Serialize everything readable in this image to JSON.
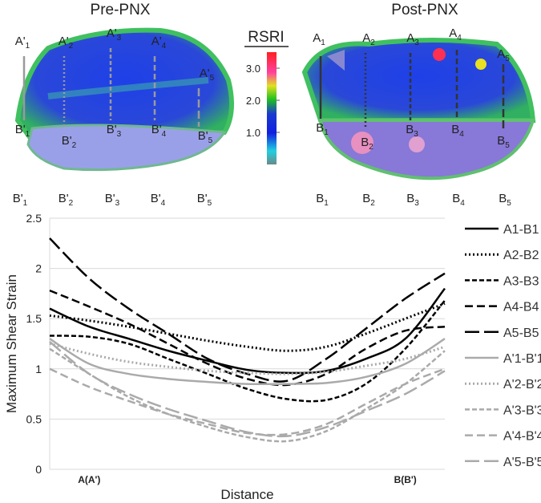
{
  "panels": [
    {
      "title": "Pre-PNX",
      "top_labels": [
        {
          "main": "A'",
          "sub": "1"
        },
        {
          "main": "A'",
          "sub": "2"
        },
        {
          "main": "A'",
          "sub": "3"
        },
        {
          "main": "A'",
          "sub": "4"
        },
        {
          "main": "A'",
          "sub": "5"
        }
      ],
      "bottom_labels": [
        {
          "main": "B'",
          "sub": "1"
        },
        {
          "main": "B'",
          "sub": "2"
        },
        {
          "main": "B'",
          "sub": "3"
        },
        {
          "main": "B'",
          "sub": "4"
        },
        {
          "main": "B'",
          "sub": "5"
        }
      ],
      "row_labels": [
        {
          "main": "B'",
          "sub": "1"
        },
        {
          "main": "B'",
          "sub": "2"
        },
        {
          "main": "B'",
          "sub": "3"
        },
        {
          "main": "B'",
          "sub": "4"
        },
        {
          "main": "B'",
          "sub": "5"
        }
      ]
    },
    {
      "title": "Post-PNX",
      "top_labels": [
        {
          "main": "A",
          "sub": "1"
        },
        {
          "main": "A",
          "sub": "2"
        },
        {
          "main": "A",
          "sub": "3"
        },
        {
          "main": "A",
          "sub": "4"
        },
        {
          "main": "A",
          "sub": "5"
        }
      ],
      "bottom_labels": [
        {
          "main": "B",
          "sub": "1"
        },
        {
          "main": "B",
          "sub": "2"
        },
        {
          "main": "B",
          "sub": "3"
        },
        {
          "main": "B",
          "sub": "4"
        },
        {
          "main": "B",
          "sub": "5"
        }
      ],
      "row_labels": [
        {
          "main": "B",
          "sub": "1"
        },
        {
          "main": "B",
          "sub": "2"
        },
        {
          "main": "B",
          "sub": "3"
        },
        {
          "main": "B",
          "sub": "4"
        },
        {
          "main": "B",
          "sub": "5"
        }
      ]
    }
  ],
  "colorbar": {
    "title": "RSRI",
    "lim": [
      0,
      3.5
    ],
    "ticks": [
      {
        "value": 3,
        "label": "3.0"
      },
      {
        "value": 2,
        "label": "2.0"
      },
      {
        "value": 1,
        "label": "1.0"
      }
    ]
  },
  "chart_data": {
    "type": "line",
    "y_label": "Maximum Shear Strain",
    "x_label": "Distance",
    "categories": [
      null,
      "A(A')",
      null,
      null,
      null,
      null,
      null,
      null,
      null,
      "B(B')",
      null
    ],
    "ylim": [
      0,
      2.5
    ],
    "yticks": [
      0,
      0.5,
      1,
      1.5,
      2,
      2.5
    ],
    "grid": true,
    "series": [
      {
        "name": "A1-B1",
        "color": "#000000",
        "dash": "solid",
        "values": [
          1.6,
          1.42,
          1.3,
          1.18,
          1.08,
          0.99,
          0.96,
          0.98,
          1.1,
          1.3,
          1.8
        ]
      },
      {
        "name": "A2-B2",
        "color": "#000000",
        "dash": "dotted",
        "values": [
          1.53,
          1.48,
          1.42,
          1.35,
          1.28,
          1.22,
          1.18,
          1.22,
          1.35,
          1.5,
          1.65
        ]
      },
      {
        "name": "A3-B3",
        "color": "#000000",
        "dash": "short",
        "values": [
          1.33,
          1.32,
          1.25,
          1.1,
          0.95,
          0.8,
          0.7,
          0.69,
          0.85,
          1.2,
          1.68
        ]
      },
      {
        "name": "A4-B4",
        "color": "#000000",
        "dash": "medium",
        "values": [
          1.78,
          1.62,
          1.45,
          1.25,
          1.05,
          0.9,
          0.84,
          0.95,
          1.2,
          1.38,
          1.42
        ]
      },
      {
        "name": "A5-B5",
        "color": "#000000",
        "dash": "long",
        "values": [
          2.3,
          1.9,
          1.6,
          1.35,
          1.1,
          0.95,
          0.88,
          1.1,
          1.4,
          1.7,
          1.95
        ]
      },
      {
        "name": "A'1-B'1",
        "color": "#aaaaaa",
        "dash": "solid",
        "values": [
          1.3,
          1.05,
          0.95,
          0.9,
          0.87,
          0.85,
          0.85,
          0.86,
          0.92,
          1.05,
          1.3
        ]
      },
      {
        "name": "A'2-B'2",
        "color": "#aaaaaa",
        "dash": "dotted",
        "values": [
          1.25,
          1.15,
          1.07,
          1.02,
          0.98,
          0.96,
          0.95,
          0.97,
          1.03,
          1.1,
          1.22
        ]
      },
      {
        "name": "A'3-B'3",
        "color": "#aaaaaa",
        "dash": "short",
        "values": [
          1.2,
          0.95,
          0.72,
          0.55,
          0.42,
          0.32,
          0.28,
          0.38,
          0.6,
          0.85,
          1.18
        ]
      },
      {
        "name": "A'4-B'4",
        "color": "#aaaaaa",
        "dash": "medium",
        "values": [
          1.0,
          0.82,
          0.68,
          0.55,
          0.45,
          0.36,
          0.35,
          0.45,
          0.65,
          0.85,
          1.0
        ]
      },
      {
        "name": "A'5-B'5",
        "color": "#aaaaaa",
        "dash": "long",
        "values": [
          1.27,
          0.95,
          0.75,
          0.6,
          0.48,
          0.37,
          0.33,
          0.42,
          0.58,
          0.75,
          0.98
        ]
      }
    ]
  }
}
